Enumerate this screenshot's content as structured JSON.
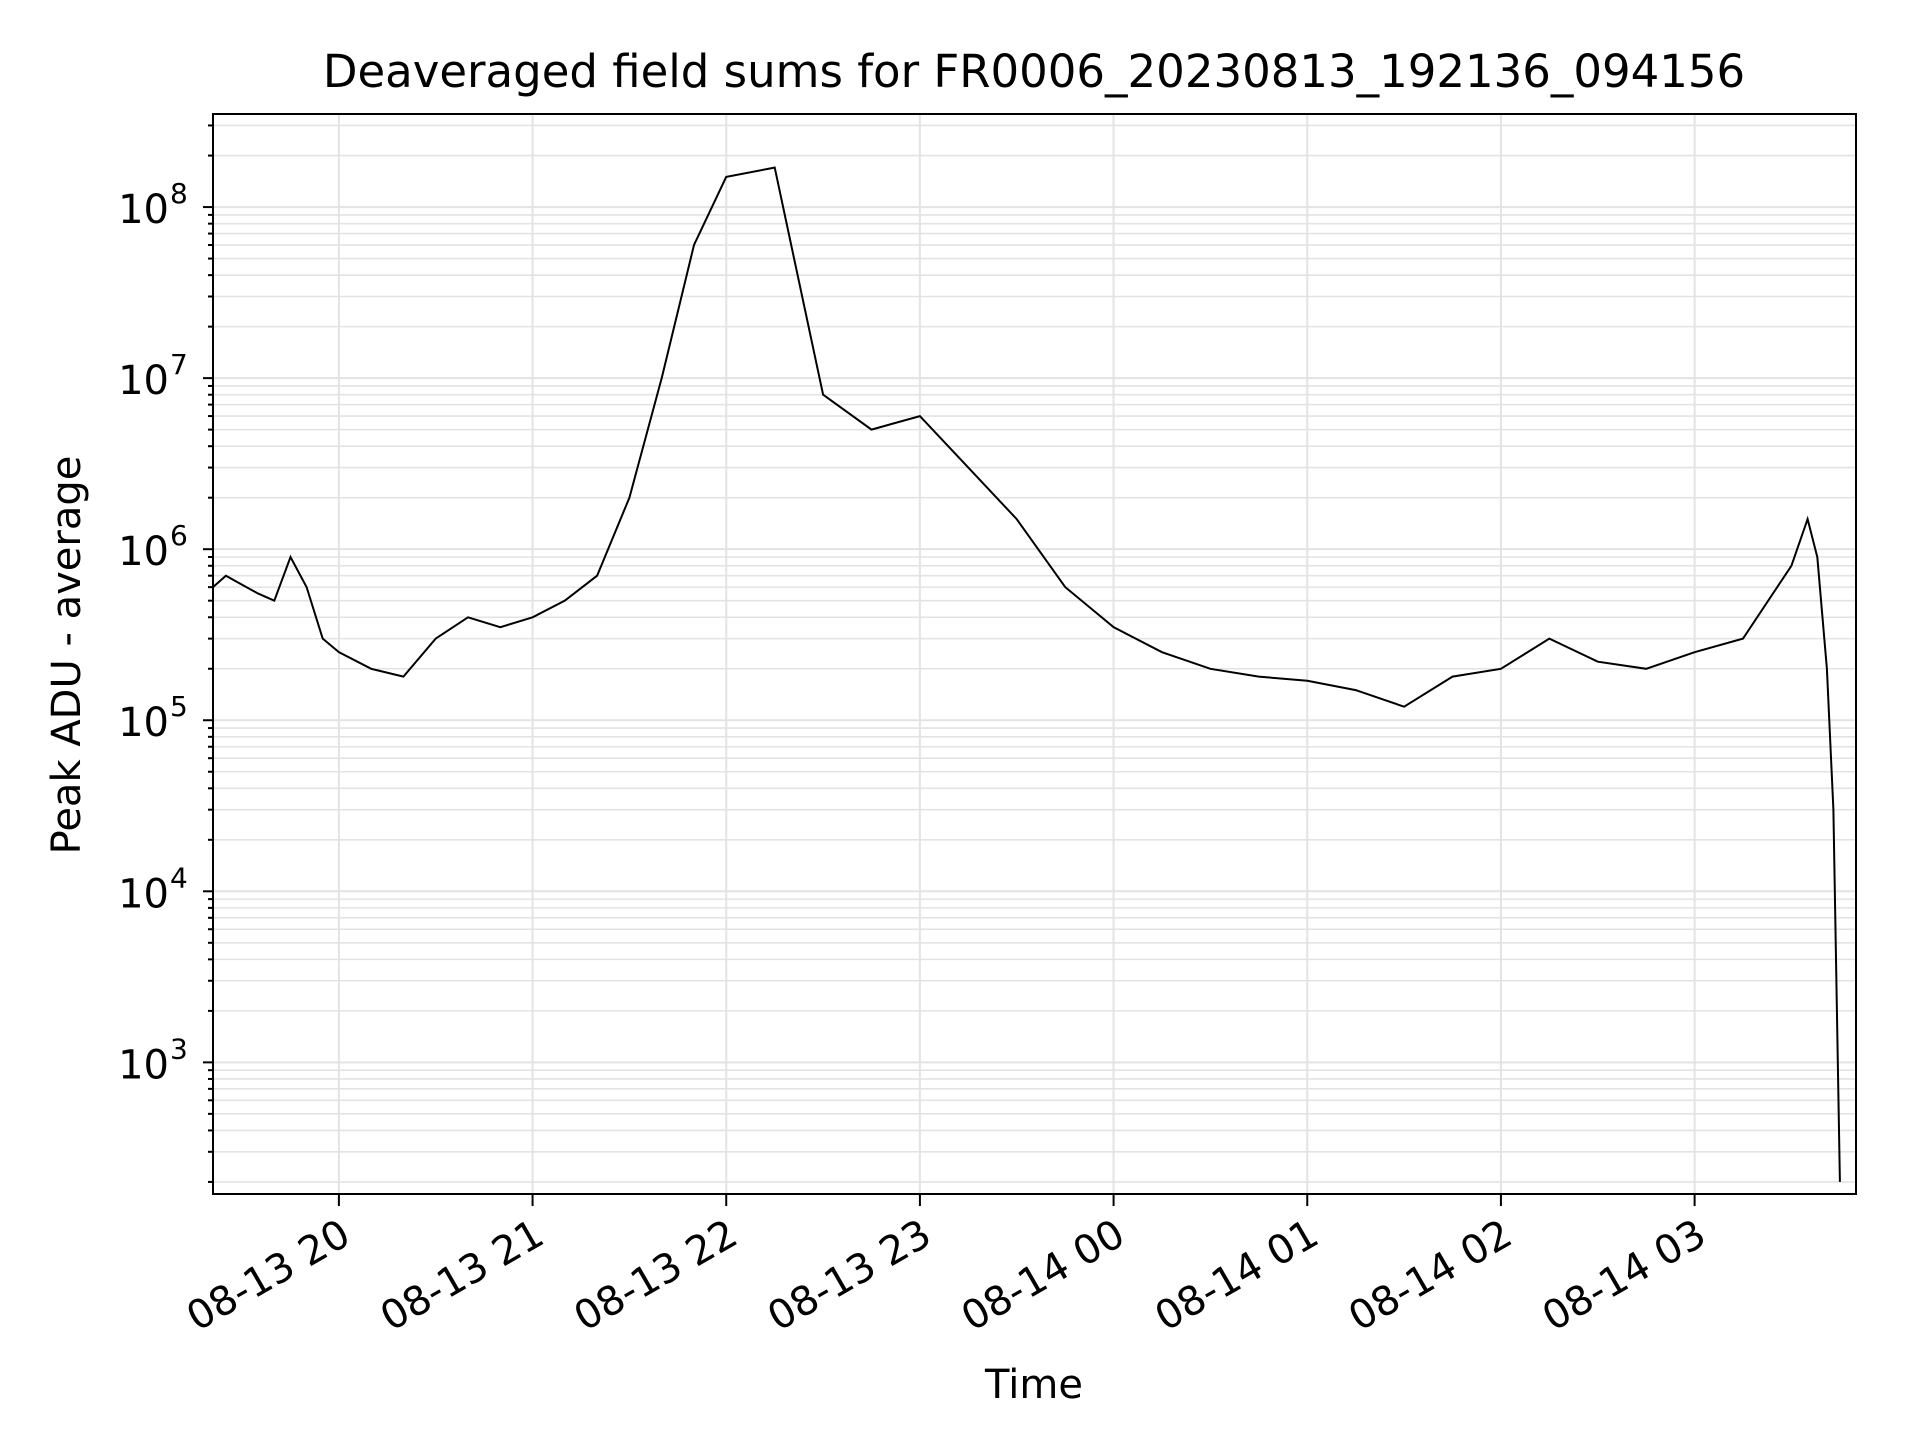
{
  "chart_data": {
    "type": "line",
    "title": "Deaveraged field sums for FR0006_20230813_192136_094156",
    "xlabel": "Time",
    "ylabel": "Peak ADU - average",
    "yscale": "log",
    "ylim": [
      170,
      350000000
    ],
    "xlim": [
      "08-13 19:21",
      "08-14 03:50"
    ],
    "grid": true,
    "line_color": "#000000",
    "x_ticks": [
      {
        "label": "08-13 20",
        "time": "08-13 20:00"
      },
      {
        "label": "08-13 21",
        "time": "08-13 21:00"
      },
      {
        "label": "08-13 22",
        "time": "08-13 22:00"
      },
      {
        "label": "08-13 23",
        "time": "08-13 23:00"
      },
      {
        "label": "08-14 00",
        "time": "08-14 00:00"
      },
      {
        "label": "08-14 01",
        "time": "08-14 01:00"
      },
      {
        "label": "08-14 02",
        "time": "08-14 02:00"
      },
      {
        "label": "08-14 03",
        "time": "08-14 03:00"
      }
    ],
    "y_ticks": [
      {
        "base": "10",
        "exp": "3",
        "value": 1000
      },
      {
        "base": "10",
        "exp": "4",
        "value": 10000
      },
      {
        "base": "10",
        "exp": "5",
        "value": 100000
      },
      {
        "base": "10",
        "exp": "6",
        "value": 1000000
      },
      {
        "base": "10",
        "exp": "7",
        "value": 10000000
      },
      {
        "base": "10",
        "exp": "8",
        "value": 100000000
      }
    ],
    "series": [
      {
        "points": [
          [
            "08-13 19:21",
            600000
          ],
          [
            "08-13 19:25",
            700000
          ],
          [
            "08-13 19:30",
            620000
          ],
          [
            "08-13 19:35",
            550000
          ],
          [
            "08-13 19:40",
            500000
          ],
          [
            "08-13 19:45",
            900000
          ],
          [
            "08-13 19:50",
            600000
          ],
          [
            "08-13 19:55",
            300000
          ],
          [
            "08-13 20:00",
            250000
          ],
          [
            "08-13 20:10",
            200000
          ],
          [
            "08-13 20:20",
            180000
          ],
          [
            "08-13 20:30",
            300000
          ],
          [
            "08-13 20:40",
            400000
          ],
          [
            "08-13 20:50",
            350000
          ],
          [
            "08-13 21:00",
            400000
          ],
          [
            "08-13 21:10",
            500000
          ],
          [
            "08-13 21:20",
            700000
          ],
          [
            "08-13 21:30",
            2000000
          ],
          [
            "08-13 21:40",
            10000000
          ],
          [
            "08-13 21:50",
            60000000
          ],
          [
            "08-13 22:00",
            150000000
          ],
          [
            "08-13 22:15",
            170000000
          ],
          [
            "08-13 22:30",
            8000000
          ],
          [
            "08-13 22:45",
            5000000
          ],
          [
            "08-13 23:00",
            6000000
          ],
          [
            "08-13 23:15",
            3000000
          ],
          [
            "08-13 23:30",
            1500000
          ],
          [
            "08-13 23:45",
            600000
          ],
          [
            "08-14 00:00",
            350000
          ],
          [
            "08-14 00:15",
            250000
          ],
          [
            "08-14 00:30",
            200000
          ],
          [
            "08-14 00:45",
            180000
          ],
          [
            "08-14 01:00",
            170000
          ],
          [
            "08-14 01:15",
            150000
          ],
          [
            "08-14 01:30",
            120000
          ],
          [
            "08-14 01:45",
            180000
          ],
          [
            "08-14 02:00",
            200000
          ],
          [
            "08-14 02:15",
            300000
          ],
          [
            "08-14 02:30",
            220000
          ],
          [
            "08-14 02:45",
            200000
          ],
          [
            "08-14 03:00",
            250000
          ],
          [
            "08-14 03:15",
            300000
          ],
          [
            "08-14 03:30",
            800000
          ],
          [
            "08-14 03:35",
            1500000
          ],
          [
            "08-14 03:38",
            900000
          ],
          [
            "08-14 03:41",
            200000
          ],
          [
            "08-14 03:43",
            30000
          ],
          [
            "08-14 03:45",
            200
          ]
        ]
      }
    ]
  }
}
